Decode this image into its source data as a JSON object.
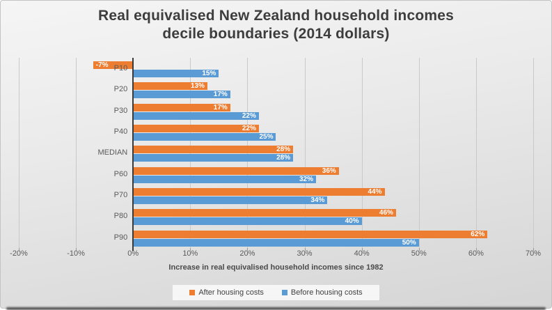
{
  "chart_data": {
    "type": "bar",
    "orientation": "horizontal",
    "title_lines": [
      "Real equivalised New Zealand household incomes",
      "decile boundaries (2014 dollars)"
    ],
    "categories": [
      "P10",
      "P20",
      "P30",
      "P40",
      "MEDIAN",
      "P60",
      "P70",
      "P80",
      "P90"
    ],
    "series": [
      {
        "name": "After housing costs",
        "color": "#ED7D31",
        "values": [
          -7,
          13,
          17,
          22,
          28,
          36,
          44,
          46,
          62
        ],
        "labels": [
          "-7%",
          "13%",
          "17%",
          "22%",
          "28%",
          "36%",
          "44%",
          "46%",
          "62%"
        ]
      },
      {
        "name": "Before housing costs",
        "color": "#5B9BD5",
        "values": [
          15,
          17,
          22,
          25,
          28,
          32,
          34,
          40,
          50
        ],
        "labels": [
          "15%",
          "17%",
          "22%",
          "25%",
          "28%",
          "32%",
          "34%",
          "40%",
          "50%"
        ]
      }
    ],
    "xlabel": "Increase in real equivalised household incomes since 1982",
    "xlim": [
      -20,
      70
    ],
    "ticks": [
      {
        "v": -20,
        "label": "-20%"
      },
      {
        "v": -10,
        "label": "-10%"
      },
      {
        "v": 0,
        "label": "0%"
      },
      {
        "v": 10,
        "label": "10%"
      },
      {
        "v": 20,
        "label": "20%"
      },
      {
        "v": 30,
        "label": "30%"
      },
      {
        "v": 40,
        "label": "40%"
      },
      {
        "v": 50,
        "label": "50%"
      },
      {
        "v": 60,
        "label": "60%"
      },
      {
        "v": 70,
        "label": "70%"
      }
    ],
    "grid": "vertical",
    "legend_position": "bottom",
    "data_labels_position": "inside-end"
  },
  "colors": {
    "title_text": "#3d3d3d",
    "axis_text": "#595959",
    "axis_title_text": "#4a4a4a",
    "data_label_text": "#ffffff",
    "gridline": "#c9c9c9",
    "zero_axis": "#3a3a3a",
    "tick_mark": "#9a9a9a",
    "legend_bg": "#f6f6f6",
    "legend_text": "#404040",
    "frame_border": "#c3c3c3",
    "frame_bg_bottom": "#d5d5d5"
  }
}
